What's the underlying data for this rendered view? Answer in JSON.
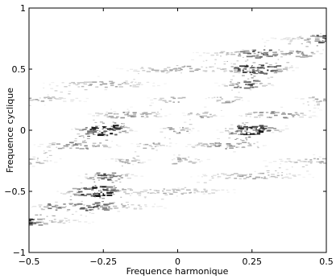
{
  "chart_data": {
    "type": "heatmap",
    "xlabel": "Frequence harmonique",
    "ylabel": "Frequence cyclique",
    "xlim": [
      -0.5,
      0.5
    ],
    "ylim": [
      -1,
      1
    ],
    "x_ticks": [
      -0.5,
      -0.25,
      0,
      0.25,
      0.5
    ],
    "x_tick_labels": [
      "−0.5",
      "−0.25",
      "0",
      "0.25",
      "0.5"
    ],
    "y_ticks": [
      -1,
      -0.5,
      0,
      0.5,
      1
    ],
    "y_tick_labels": [
      "−1",
      "−0.5",
      "0",
      "0.5",
      "1"
    ],
    "colormap": "gray_reversed",
    "box": true,
    "grid": false,
    "description_of_structure": "",
    "blobs": [
      {
        "cx": -0.25,
        "cy": 0.0,
        "spread": 0.1,
        "intensity": 1.0
      },
      {
        "cx": -0.25,
        "cy": -0.5,
        "spread": 0.1,
        "intensity": 1.0
      },
      {
        "cx": 0.25,
        "cy": 0.5,
        "spread": 0.1,
        "intensity": 1.0
      },
      {
        "cx": 0.25,
        "cy": 0.0,
        "spread": 0.1,
        "intensity": 1.0
      }
    ],
    "diagonal_bands": [
      {
        "x_from": -0.5,
        "y_from": -0.75,
        "x_to": 0.5,
        "y_to": 0.75,
        "intensity": 0.45
      },
      {
        "x_from": -0.5,
        "y_from": -0.25,
        "x_to": 0.0,
        "y_to": 0.25,
        "intensity": 0.4
      },
      {
        "x_from": 0.0,
        "y_from": -0.25,
        "x_to": 0.5,
        "y_to": 0.25,
        "intensity": 0.4
      },
      {
        "x_from": -0.5,
        "y_from": 0.25,
        "x_to": 0.5,
        "y_to": 0.75,
        "intensity": 0.4
      },
      {
        "x_from": -0.5,
        "y_from": -0.75,
        "x_to": 0.5,
        "y_to": -0.25,
        "intensity": 0.4
      }
    ],
    "horizontal_rows_y": [
      -0.875,
      -0.75,
      -0.625,
      -0.5,
      -0.375,
      -0.25,
      -0.125,
      0.0,
      0.125,
      0.25,
      0.375,
      0.5,
      0.625,
      0.75,
      0.875
    ]
  }
}
